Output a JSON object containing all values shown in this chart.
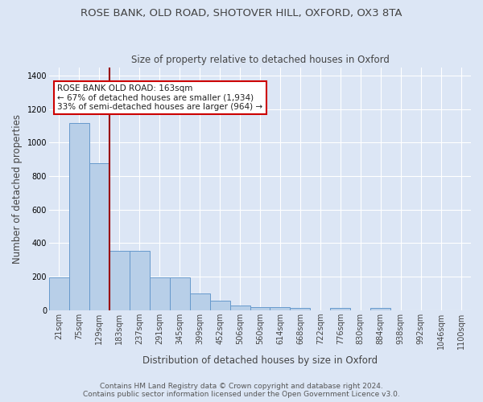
{
  "title": "ROSE BANK, OLD ROAD, SHOTOVER HILL, OXFORD, OX3 8TA",
  "subtitle": "Size of property relative to detached houses in Oxford",
  "xlabel": "Distribution of detached houses by size in Oxford",
  "ylabel": "Number of detached properties",
  "categories": [
    "21sqm",
    "75sqm",
    "129sqm",
    "183sqm",
    "237sqm",
    "291sqm",
    "345sqm",
    "399sqm",
    "452sqm",
    "506sqm",
    "560sqm",
    "614sqm",
    "668sqm",
    "722sqm",
    "776sqm",
    "830sqm",
    "884sqm",
    "938sqm",
    "992sqm",
    "1046sqm",
    "1100sqm"
  ],
  "values": [
    197,
    1118,
    876,
    352,
    352,
    193,
    193,
    97,
    55,
    25,
    18,
    18,
    15,
    0,
    15,
    0,
    12,
    0,
    0,
    0,
    0
  ],
  "bar_color": "#b8cfe8",
  "bar_edge_color": "#6699cc",
  "background_color": "#dce6f5",
  "grid_color": "#ffffff",
  "red_line_x": 2.5,
  "annotation_text": "ROSE BANK OLD ROAD: 163sqm\n← 67% of detached houses are smaller (1,934)\n33% of semi-detached houses are larger (964) →",
  "annotation_box_color": "#ffffff",
  "annotation_box_edge": "#cc0000",
  "footnote": "Contains HM Land Registry data © Crown copyright and database right 2024.\nContains public sector information licensed under the Open Government Licence v3.0.",
  "ylim": [
    0,
    1450
  ],
  "yticks": [
    0,
    200,
    400,
    600,
    800,
    1000,
    1200,
    1400
  ],
  "title_fontsize": 9.5,
  "subtitle_fontsize": 8.5,
  "tick_fontsize": 7,
  "ylabel_fontsize": 8.5,
  "xlabel_fontsize": 8.5,
  "footnote_fontsize": 6.5
}
